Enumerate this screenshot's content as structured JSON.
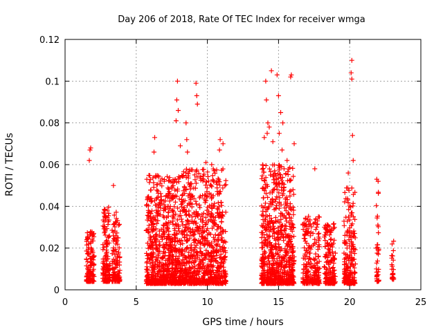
{
  "chart_data": {
    "type": "scatter",
    "title": "Day 206 of 2018, Rate Of TEC Index for receiver wmga",
    "xlabel": "GPS time / hours",
    "ylabel": "ROTI / TECUs",
    "xlim": [
      0,
      25
    ],
    "ylim": [
      0,
      0.12
    ],
    "xticks": [
      "0",
      "5",
      "10",
      "15",
      "20",
      "25"
    ],
    "yticks": [
      "0",
      "0.02",
      "0.04",
      "0.06",
      "0.08",
      "0.1",
      "0.12"
    ],
    "grid": true,
    "marker": "+",
    "color": "#ff0000",
    "clusters": [
      {
        "x": [
          1.5,
          2.05
        ],
        "y": [
          0.004,
          0.029
        ],
        "n": 140
      },
      {
        "x": [
          2.65,
          3.15
        ],
        "y": [
          0.004,
          0.04
        ],
        "n": 140
      },
      {
        "x": [
          3.3,
          3.85
        ],
        "y": [
          0.004,
          0.038
        ],
        "n": 120
      },
      {
        "x": [
          5.7,
          8.0
        ],
        "y": [
          0.003,
          0.055
        ],
        "n": 700
      },
      {
        "x": [
          8.0,
          11.3
        ],
        "y": [
          0.003,
          0.058
        ],
        "n": 900
      },
      {
        "x": [
          13.8,
          16.1
        ],
        "y": [
          0.003,
          0.06
        ],
        "n": 750
      },
      {
        "x": [
          16.7,
          17.9
        ],
        "y": [
          0.003,
          0.036
        ],
        "n": 220
      },
      {
        "x": [
          18.2,
          19.0
        ],
        "y": [
          0.003,
          0.032
        ],
        "n": 160
      },
      {
        "x": [
          19.6,
          20.4
        ],
        "y": [
          0.003,
          0.05
        ],
        "n": 220
      },
      {
        "x": [
          21.85,
          22.05
        ],
        "y": [
          0.004,
          0.05
        ],
        "n": 40
      },
      {
        "x": [
          22.95,
          23.1
        ],
        "y": [
          0.005,
          0.024
        ],
        "n": 25
      }
    ],
    "outliers": [
      [
        1.75,
        0.067
      ],
      [
        1.8,
        0.068
      ],
      [
        1.7,
        0.062
      ],
      [
        3.4,
        0.05
      ],
      [
        6.3,
        0.073
      ],
      [
        6.25,
        0.066
      ],
      [
        7.9,
        0.1
      ],
      [
        7.85,
        0.091
      ],
      [
        7.95,
        0.086
      ],
      [
        7.8,
        0.081
      ],
      [
        8.1,
        0.069
      ],
      [
        8.5,
        0.08
      ],
      [
        8.55,
        0.072
      ],
      [
        8.6,
        0.066
      ],
      [
        9.2,
        0.099
      ],
      [
        9.25,
        0.093
      ],
      [
        9.3,
        0.089
      ],
      [
        9.9,
        0.061
      ],
      [
        10.3,
        0.06
      ],
      [
        10.9,
        0.072
      ],
      [
        11.1,
        0.07
      ],
      [
        10.85,
        0.067
      ],
      [
        14.1,
        0.1
      ],
      [
        14.15,
        0.091
      ],
      [
        14.25,
        0.08
      ],
      [
        14.35,
        0.078
      ],
      [
        14.2,
        0.075
      ],
      [
        14.0,
        0.073
      ],
      [
        14.5,
        0.105
      ],
      [
        14.9,
        0.103
      ],
      [
        15.0,
        0.093
      ],
      [
        15.15,
        0.085
      ],
      [
        15.05,
        0.075
      ],
      [
        15.3,
        0.08
      ],
      [
        15.25,
        0.067
      ],
      [
        14.6,
        0.071
      ],
      [
        15.9,
        0.103
      ],
      [
        15.85,
        0.102
      ],
      [
        16.1,
        0.07
      ],
      [
        15.6,
        0.062
      ],
      [
        17.55,
        0.058
      ],
      [
        20.15,
        0.11
      ],
      [
        20.1,
        0.104
      ],
      [
        20.15,
        0.101
      ],
      [
        20.2,
        0.074
      ],
      [
        20.25,
        0.062
      ],
      [
        19.9,
        0.056
      ],
      [
        21.9,
        0.053
      ],
      [
        22.0,
        0.052
      ]
    ]
  }
}
